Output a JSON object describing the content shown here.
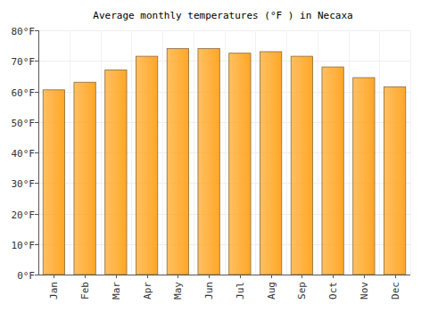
{
  "chart_data": {
    "type": "bar",
    "title": "Average monthly temperatures (°F ) in Necaxa",
    "categories": [
      "Jan",
      "Feb",
      "Mar",
      "Apr",
      "May",
      "Jun",
      "Jul",
      "Aug",
      "Sep",
      "Oct",
      "Nov",
      "Dec"
    ],
    "values": [
      60.5,
      63,
      67,
      71.5,
      74,
      74,
      72.5,
      73,
      71.5,
      68,
      64.5,
      61.5
    ],
    "color": "#ffa726",
    "ylim": [
      0,
      80
    ],
    "yticks": [
      {
        "value": 0,
        "label": "0°F"
      },
      {
        "value": 10,
        "label": "10°F"
      },
      {
        "value": 20,
        "label": "20°F"
      },
      {
        "value": 30,
        "label": "30°F"
      },
      {
        "value": 40,
        "label": "40°F"
      },
      {
        "value": 50,
        "label": "50°F"
      },
      {
        "value": 60,
        "label": "60°F"
      },
      {
        "value": 70,
        "label": "70°F"
      },
      {
        "value": 80,
        "label": "80°F"
      }
    ],
    "grid": true
  }
}
